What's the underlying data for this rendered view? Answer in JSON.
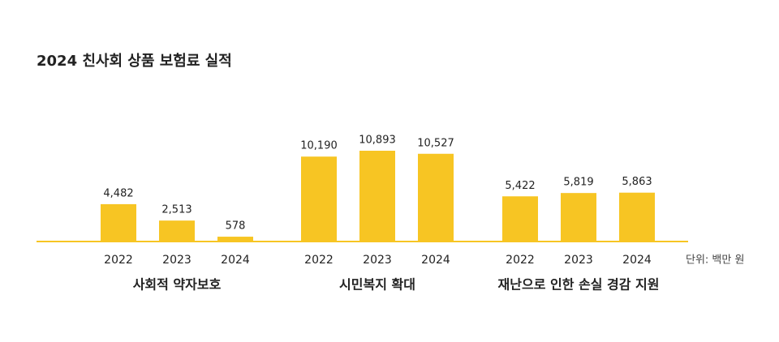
{
  "chart_data": {
    "type": "bar",
    "title": "2024 친사회 상품 보험료 실적",
    "unit": "단위: 백만 원",
    "color": "#f7c523",
    "groups": [
      {
        "name": "사회적 약자보호",
        "categories": [
          "2022",
          "2023",
          "2024"
        ],
        "values": [
          4482,
          2513,
          578
        ],
        "value_labels": [
          "4,482",
          "2,513",
          "578"
        ]
      },
      {
        "name": "시민복지 확대",
        "categories": [
          "2022",
          "2023",
          "2024"
        ],
        "values": [
          10190,
          10893,
          10527
        ],
        "value_labels": [
          "10,190",
          "10,893",
          "10,527"
        ]
      },
      {
        "name": "재난으로 인한 손실 경감 지원",
        "categories": [
          "2022",
          "2023",
          "2024"
        ],
        "values": [
          5422,
          5819,
          5863
        ],
        "value_labels": [
          "5,422",
          "5,819",
          "5,863"
        ]
      }
    ]
  }
}
